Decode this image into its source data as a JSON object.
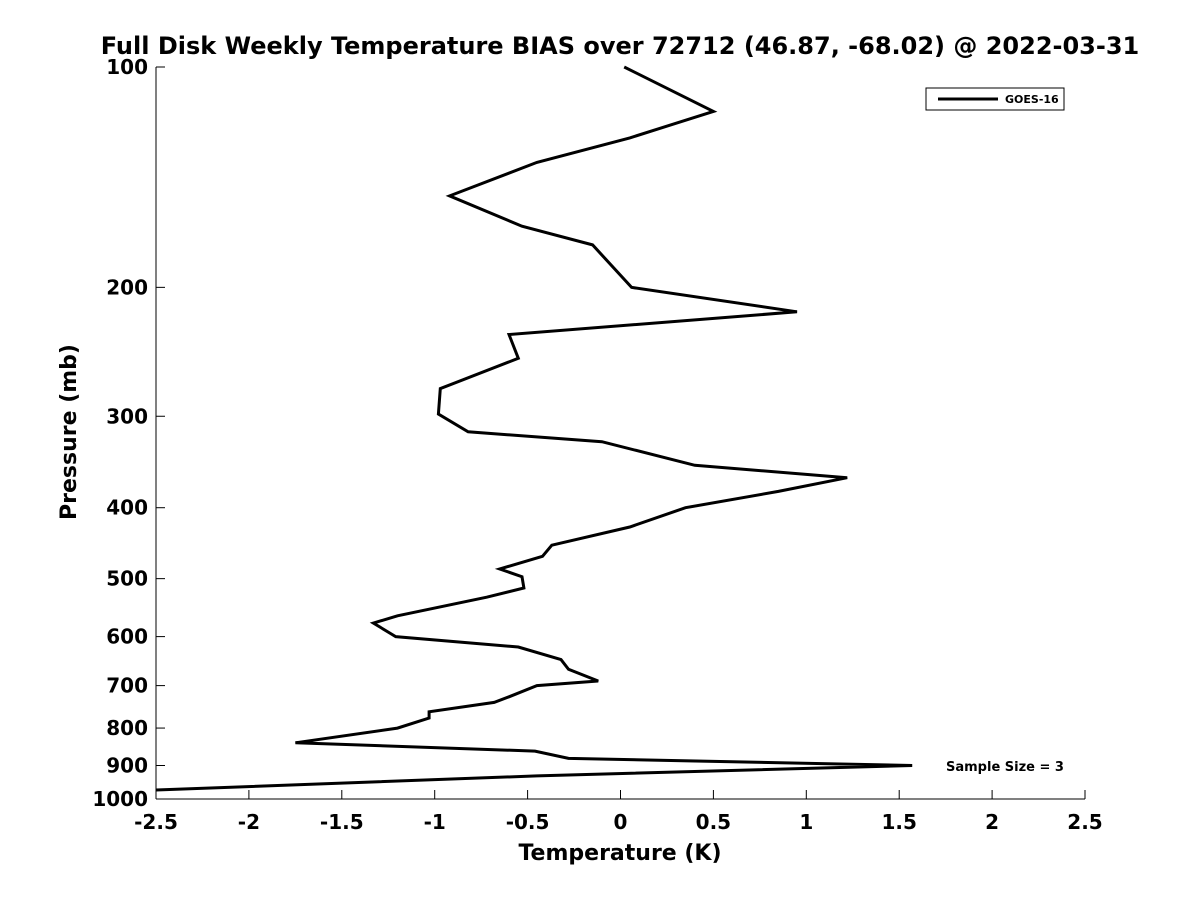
{
  "chart_data": {
    "type": "line",
    "title": "Full Disk Weekly Temperature BIAS over 72712 (46.87, -68.02) @ 2022-03-31",
    "xlabel": "Temperature (K)",
    "ylabel": "Pressure (mb)",
    "xlim": [
      -2.5,
      2.5
    ],
    "ylim": [
      100,
      1000
    ],
    "y_scale": "log",
    "y_reversed": true,
    "xticks": [
      "-2.5",
      "-2",
      "-1.5",
      "-1",
      "-0.5",
      "0",
      "0.5",
      "1",
      "1.5",
      "2",
      "2.5"
    ],
    "yticks": [
      "100",
      "200",
      "300",
      "400",
      "500",
      "600",
      "700",
      "800",
      "900",
      "1000"
    ],
    "grid": false,
    "legend_position": "top-right",
    "series": [
      {
        "name": "GOES-16",
        "color": "#000000",
        "points": [
          {
            "x": 0.02,
            "y": 100
          },
          {
            "x": 0.5,
            "y": 115
          },
          {
            "x": 0.05,
            "y": 125
          },
          {
            "x": -0.45,
            "y": 135
          },
          {
            "x": -0.92,
            "y": 150
          },
          {
            "x": -0.53,
            "y": 165
          },
          {
            "x": -0.15,
            "y": 175
          },
          {
            "x": 0.06,
            "y": 200
          },
          {
            "x": 0.95,
            "y": 216
          },
          {
            "x": -0.6,
            "y": 232
          },
          {
            "x": -0.55,
            "y": 250
          },
          {
            "x": -0.97,
            "y": 275
          },
          {
            "x": -0.98,
            "y": 298
          },
          {
            "x": -0.82,
            "y": 315
          },
          {
            "x": -0.1,
            "y": 325
          },
          {
            "x": 0.4,
            "y": 350
          },
          {
            "x": 1.22,
            "y": 364
          },
          {
            "x": 0.85,
            "y": 380
          },
          {
            "x": 0.35,
            "y": 400
          },
          {
            "x": 0.05,
            "y": 425
          },
          {
            "x": -0.37,
            "y": 450
          },
          {
            "x": -0.42,
            "y": 466
          },
          {
            "x": -0.65,
            "y": 485
          },
          {
            "x": -0.53,
            "y": 497
          },
          {
            "x": -0.52,
            "y": 515
          },
          {
            "x": -0.72,
            "y": 530
          },
          {
            "x": -1.2,
            "y": 562
          },
          {
            "x": -1.33,
            "y": 575
          },
          {
            "x": -1.21,
            "y": 600
          },
          {
            "x": -0.55,
            "y": 620
          },
          {
            "x": -0.32,
            "y": 645
          },
          {
            "x": -0.28,
            "y": 665
          },
          {
            "x": -0.12,
            "y": 690
          },
          {
            "x": -0.45,
            "y": 700
          },
          {
            "x": -0.6,
            "y": 725
          },
          {
            "x": -0.68,
            "y": 738
          },
          {
            "x": -1.03,
            "y": 760
          },
          {
            "x": -1.03,
            "y": 775
          },
          {
            "x": -1.2,
            "y": 800
          },
          {
            "x": -1.75,
            "y": 838
          },
          {
            "x": -0.46,
            "y": 860
          },
          {
            "x": -0.28,
            "y": 880
          },
          {
            "x": 1.57,
            "y": 900
          },
          {
            "x": -0.45,
            "y": 930
          },
          {
            "x": -2.5,
            "y": 972
          }
        ]
      }
    ],
    "annotation": "Sample Size = 3"
  }
}
